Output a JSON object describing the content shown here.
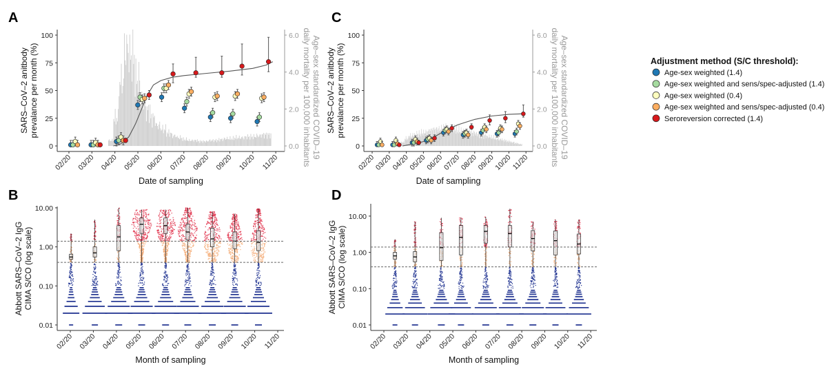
{
  "colors": {
    "age_sex_14": "#1f78b4",
    "sens_spec_14": "#a6dba0",
    "age_sex_04": "#ffffbf",
    "sens_spec_04": "#fdae61",
    "seroreversion_14": "#d7191c",
    "mortality_bars": "#cfcfcf",
    "violin_high": "#e0304a",
    "violin_mid": "#f5ad78",
    "violin_low": "#2b3d96"
  },
  "legend": {
    "title": "Adjustment method (S/C threshold):",
    "items": [
      {
        "label": "Age-sex weighted (1.4)",
        "color": "#1f78b4"
      },
      {
        "label": "Age-sex weighted and sens/spec-adjusted (1.4)",
        "color": "#a6dba0"
      },
      {
        "label": "Age-sex weighted (0.4)",
        "color": "#ffffbf"
      },
      {
        "label": "Age-sex weighted and sens/spec-adjusted (0.4)",
        "color": "#fdae61"
      },
      {
        "label": "Seroreversion corrected (1.4)",
        "color": "#d7191c"
      }
    ],
    "placement": "right"
  },
  "chart_data": [
    {
      "panel": "A",
      "type": "scatter",
      "xlabel": "Date of sampling",
      "ylabel": [
        "SARS–CoV–2 anitbody",
        "prevalance per month (%)"
      ],
      "ylabel_right": [
        "Age–sex standardized COVID–19",
        "daily mortality per 100,000 inhabitants"
      ],
      "x_ticks": [
        "02/20",
        "03/20",
        "04/20",
        "05/20",
        "06/20",
        "07/20",
        "08/20",
        "09/20",
        "10/20",
        "11/20"
      ],
      "y_ticks": [
        "0",
        "25",
        "50",
        "75",
        "100"
      ],
      "y_ticks_right": [
        "0.0",
        "2.0",
        "4.0",
        "6.0"
      ],
      "ylim": [
        0,
        100
      ],
      "ylim_right": [
        0,
        6
      ],
      "groups": [
        {
          "date": "2020-02-09",
          "values": [
            1,
            1,
            4,
            1,
            null
          ]
        },
        {
          "date": "2020-03-06",
          "values": [
            1,
            1,
            3,
            1,
            1
          ]
        },
        {
          "date": "2020-04-09",
          "values": [
            4,
            5,
            8,
            5,
            5
          ]
        },
        {
          "date": "2020-05-07",
          "values": [
            37,
            44,
            42,
            43,
            46
          ]
        },
        {
          "date": "2020-06-08",
          "values": [
            44,
            52,
            52,
            55,
            65
          ]
        },
        {
          "date": "2020-07-08",
          "values": [
            34,
            40,
            47,
            49,
            66
          ]
        },
        {
          "date": "2020-08-12",
          "values": [
            26,
            30,
            44,
            45,
            66
          ]
        },
        {
          "date": "2020-09-08",
          "values": [
            25,
            29,
            45,
            47,
            72
          ]
        },
        {
          "date": "2020-10-13",
          "values": [
            22,
            26,
            43,
            44,
            76
          ]
        }
      ],
      "seroreversion_ci": [
        null,
        [
          0,
          2
        ],
        [
          3,
          7
        ],
        [
          42,
          50
        ],
        [
          57,
          74
        ],
        [
          62,
          80
        ],
        [
          62,
          81
        ],
        [
          64,
          92
        ],
        [
          67,
          98
        ]
      ],
      "other_ci_halfwidth": 4,
      "fit_curve": [
        [
          "2020-03-30",
          0
        ],
        [
          "2020-04-09",
          2
        ],
        [
          "2020-04-19",
          8
        ],
        [
          "2020-04-28",
          20
        ],
        [
          "2020-05-04",
          30
        ],
        [
          "2020-05-13",
          45
        ],
        [
          "2020-05-22",
          55
        ],
        [
          "2020-06-01",
          59
        ],
        [
          "2020-06-16",
          62
        ],
        [
          "2020-07-01",
          63.5
        ],
        [
          "2020-08-01",
          65.5
        ],
        [
          "2020-09-01",
          67.5
        ],
        [
          "2020-10-01",
          70
        ],
        [
          "2020-10-19",
          73
        ],
        [
          "2020-10-28",
          76
        ]
      ],
      "mortality_weekly_start": "2020-03-23",
      "mortality_weekly": [
        0.3,
        1.5,
        3.5,
        5.2,
        4.8,
        3.6,
        2.5,
        1.9,
        1.5,
        1.1,
        0.9,
        0.7,
        0.55,
        0.45,
        0.35,
        0.3,
        0.3,
        0.25,
        0.25,
        0.3,
        0.3,
        0.35,
        0.4,
        0.4,
        0.45,
        0.45,
        0.5,
        0.5,
        0.55,
        0.6,
        0.6
      ]
    },
    {
      "panel": "C",
      "type": "scatter",
      "xlabel": "Date of sampling",
      "ylabel": [
        "SARS–CoV–2 anitbody",
        "prevalance per month (%)"
      ],
      "ylabel_right": [
        "Age–sex standardized COVID–19",
        "daily mortality per 100,000 inhabitants"
      ],
      "x_ticks": [
        "02/20",
        "03/20",
        "04/20",
        "05/20",
        "06/20",
        "07/20",
        "08/20",
        "09/20",
        "10/20",
        "11/20"
      ],
      "y_ticks": [
        "0",
        "25",
        "50",
        "75",
        "100"
      ],
      "y_ticks_right": [
        "0.0",
        "2.0",
        "4.0",
        "6.0"
      ],
      "ylim": [
        0,
        100
      ],
      "ylim_right": [
        0,
        6
      ],
      "groups": [
        {
          "date": "2020-02-15",
          "values": [
            1,
            1,
            4,
            1,
            null
          ]
        },
        {
          "date": "2020-03-13",
          "values": [
            1,
            1,
            5,
            2,
            1
          ]
        },
        {
          "date": "2020-04-17",
          "values": [
            3,
            3,
            6,
            4,
            3
          ]
        },
        {
          "date": "2020-05-12",
          "values": [
            5,
            6,
            7,
            5,
            7
          ]
        },
        {
          "date": "2020-06-12",
          "values": [
            12,
            14,
            15,
            13,
            16
          ]
        },
        {
          "date": "2020-07-17",
          "values": [
            10,
            11,
            12,
            10,
            17
          ]
        },
        {
          "date": "2020-08-19",
          "values": [
            12,
            14,
            17,
            15,
            23
          ]
        },
        {
          "date": "2020-09-16",
          "values": [
            11,
            12,
            16,
            15,
            25
          ]
        },
        {
          "date": "2020-10-18",
          "values": [
            11,
            13,
            20,
            18,
            29
          ]
        }
      ],
      "seroreversion_ci": [
        null,
        [
          0,
          2
        ],
        [
          1,
          5
        ],
        [
          4,
          10
        ],
        [
          13,
          19
        ],
        [
          15,
          20
        ],
        [
          19,
          28
        ],
        [
          21,
          31
        ],
        [
          26,
          37
        ]
      ],
      "other_ci_halfwidth": 3,
      "fit_curve": [
        [
          "2020-03-25",
          0
        ],
        [
          "2020-04-15",
          2
        ],
        [
          "2020-05-01",
          4
        ],
        [
          "2020-05-20",
          8
        ],
        [
          "2020-06-10",
          14
        ],
        [
          "2020-07-01",
          19
        ],
        [
          "2020-08-01",
          24
        ],
        [
          "2020-09-01",
          27
        ],
        [
          "2020-10-01",
          28.5
        ],
        [
          "2020-10-26",
          29
        ]
      ],
      "mortality_weekly_start": "2020-03-22",
      "mortality_weekly": [
        0.2,
        0.4,
        0.55,
        0.6,
        0.65,
        0.7,
        0.75,
        0.8,
        0.85,
        0.9,
        0.9,
        0.95,
        0.9,
        0.9,
        0.85,
        0.8,
        0.8,
        0.75,
        0.7,
        0.65,
        0.6,
        0.55,
        0.5,
        0.45,
        0.4,
        0.35,
        0.3,
        0.25,
        0.2,
        0.15,
        0.1
      ]
    },
    {
      "panel": "B",
      "type": "violin",
      "xlabel": "Month of sampling",
      "ylabel": [
        "Abbott SARS–CoV–2 IgG",
        "CIMA S/CO (log scale)"
      ],
      "x_ticks": [
        "02/20",
        "03/20",
        "04/20",
        "05/20",
        "06/20",
        "07/20",
        "08/20",
        "09/20",
        "10/20",
        "11/20"
      ],
      "y_ticks": [
        "0.01",
        "0.10",
        "1.00",
        "10.00"
      ],
      "y_scale": "log",
      "ylim": [
        0.01,
        10
      ],
      "thresholds": [
        1.4,
        0.4
      ],
      "months": [
        {
          "date": "2020-02-02",
          "q1": 0.48,
          "median": 0.55,
          "q3": 0.65,
          "max": 2.2,
          "positive_spread": 0.05,
          "negative_spread": 0.6
        },
        {
          "date": "2020-03-03",
          "q1": 0.55,
          "median": 0.7,
          "q3": 1.0,
          "max": 5,
          "positive_spread": 0.08,
          "negative_spread": 0.9
        },
        {
          "date": "2020-04-04",
          "q1": 0.8,
          "median": 1.8,
          "q3": 3.5,
          "max": 10,
          "positive_spread": 0.12,
          "negative_spread": 1
        },
        {
          "date": "2020-05-04",
          "q1": 2.2,
          "median": 3.8,
          "q3": 5.5,
          "max": 9,
          "positive_spread": 1,
          "negative_spread": 1
        },
        {
          "date": "2020-06-05",
          "q1": 2.2,
          "median": 3.5,
          "q3": 5.5,
          "max": 9,
          "positive_spread": 1,
          "negative_spread": 1
        },
        {
          "date": "2020-07-04",
          "q1": 1.5,
          "median": 2.4,
          "q3": 3.8,
          "max": 10,
          "positive_spread": 1,
          "negative_spread": 1
        },
        {
          "date": "2020-08-06",
          "q1": 1.0,
          "median": 1.6,
          "q3": 3.0,
          "max": 8,
          "positive_spread": 0.9,
          "negative_spread": 1
        },
        {
          "date": "2020-09-05",
          "q1": 0.9,
          "median": 1.4,
          "q3": 2.4,
          "max": 7,
          "positive_spread": 0.8,
          "negative_spread": 1
        },
        {
          "date": "2020-10-06",
          "q1": 0.8,
          "median": 1.3,
          "q3": 2.6,
          "max": 9.5,
          "positive_spread": 0.8,
          "negative_spread": 1
        }
      ]
    },
    {
      "panel": "D",
      "type": "violin",
      "xlabel": "Month of sampling",
      "ylabel": [
        "Abbott SARS–CoV–2 IgG",
        "CIMA S/CO (log scale)"
      ],
      "x_ticks": [
        "02/20",
        "03/20",
        "04/20",
        "05/20",
        "06/20",
        "07/20",
        "08/20",
        "09/20",
        "10/20",
        "11/20"
      ],
      "y_ticks": [
        "0.01",
        "0.10",
        "1.00",
        "10.00"
      ],
      "y_scale": "log",
      "ylim": [
        0.01,
        20
      ],
      "thresholds": [
        1.4,
        0.4
      ],
      "months": [
        {
          "date": "2020-02-15",
          "q1": 0.65,
          "median": 0.8,
          "q3": 1.0,
          "max": 2.3,
          "positive_spread": 0.05,
          "negative_spread": 0.7
        },
        {
          "date": "2020-03-12",
          "q1": 0.55,
          "median": 0.75,
          "q3": 1.05,
          "max": 7,
          "positive_spread": 0.1,
          "negative_spread": 0.9
        },
        {
          "date": "2020-04-16",
          "q1": 0.6,
          "median": 1.35,
          "q3": 3.5,
          "max": 9,
          "positive_spread": 0.1,
          "negative_spread": 1
        },
        {
          "date": "2020-05-12",
          "q1": 0.85,
          "median": 2.6,
          "q3": 5.5,
          "max": 9,
          "positive_spread": 0.1,
          "negative_spread": 0.9
        },
        {
          "date": "2020-06-14",
          "q1": 1.8,
          "median": 3.8,
          "q3": 5.5,
          "max": 9.5,
          "positive_spread": 0.15,
          "negative_spread": 1
        },
        {
          "date": "2020-07-16",
          "q1": 1.4,
          "median": 3.3,
          "q3": 5.5,
          "max": 16,
          "positive_spread": 0.12,
          "negative_spread": 1
        },
        {
          "date": "2020-08-16",
          "q1": 1.1,
          "median": 2.4,
          "q3": 4.0,
          "max": 7,
          "positive_spread": 0.15,
          "negative_spread": 1
        },
        {
          "date": "2020-09-15",
          "q1": 0.85,
          "median": 2.1,
          "q3": 3.9,
          "max": 8,
          "positive_spread": 0.12,
          "negative_spread": 0.9
        },
        {
          "date": "2020-10-16",
          "q1": 0.9,
          "median": 1.7,
          "q3": 3.2,
          "max": 8,
          "positive_spread": 0.12,
          "negative_spread": 0.9
        }
      ]
    }
  ]
}
